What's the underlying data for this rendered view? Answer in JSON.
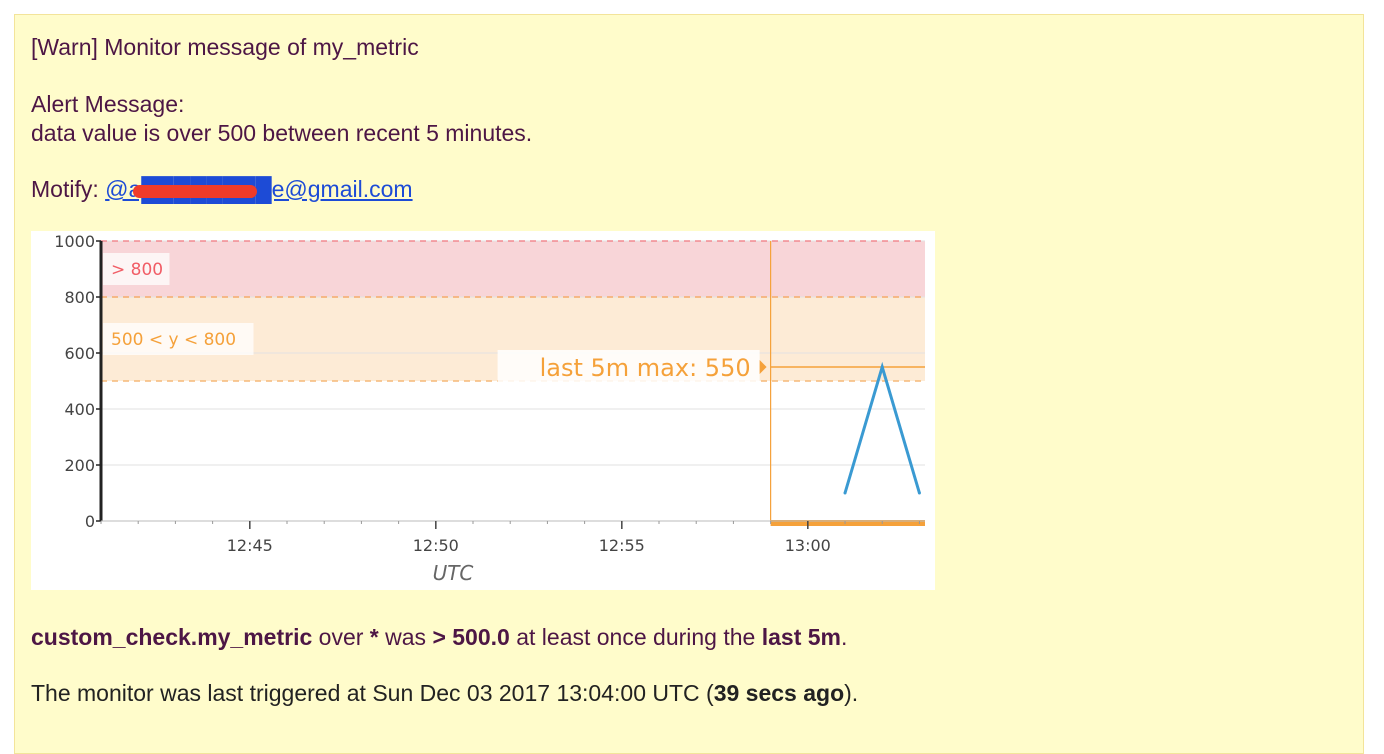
{
  "email": {
    "subject": "[Warn] Monitor message of my_metric",
    "alert_heading": "Alert Message:",
    "alert_body": "data value is over 500 between recent 5 minutes.",
    "notify_label": "Motify:",
    "notify_address": "@a████████e@gmail.com",
    "summary": {
      "metric": "custom_check.my_metric",
      "t1": " over ",
      "scope": "*",
      "t2": " was ",
      "condition": "> 500.0",
      "t3": " at least once during the ",
      "window": "last 5m",
      "t4": "."
    },
    "triggered": {
      "prefix": "The monitor was last triggered at Sun Dec 03 2017 13:04:00 UTC (",
      "ago": "39 secs ago",
      "suffix": ")."
    }
  },
  "chart_data": {
    "type": "line",
    "xlabel": "UTC",
    "ylabel": "",
    "ylim": [
      0,
      1000
    ],
    "y_ticks": [
      "0",
      "200",
      "400",
      "600",
      "800",
      "1000"
    ],
    "x_ticks": [
      "12:45",
      "12:50",
      "12:55",
      "13:00"
    ],
    "grid": true,
    "thresholds": [
      {
        "label": "> 800",
        "from": 800,
        "to": 1000,
        "color": "#f8d5d8",
        "line_color": "#f08a90",
        "text_color": "#f15d66"
      },
      {
        "label": "500 < y < 800",
        "from": 500,
        "to": 800,
        "color": "#fdebd6",
        "line_color": "#f5b978",
        "text_color": "#f5a13a"
      }
    ],
    "annotation": {
      "label": "last 5m max: 550",
      "value": 550,
      "color": "#f5a13a"
    },
    "series": [
      {
        "color": "#3a9ad2",
        "x": [
          "13:01",
          "13:02",
          "13:03"
        ],
        "values": [
          100,
          550,
          100
        ]
      }
    ]
  }
}
